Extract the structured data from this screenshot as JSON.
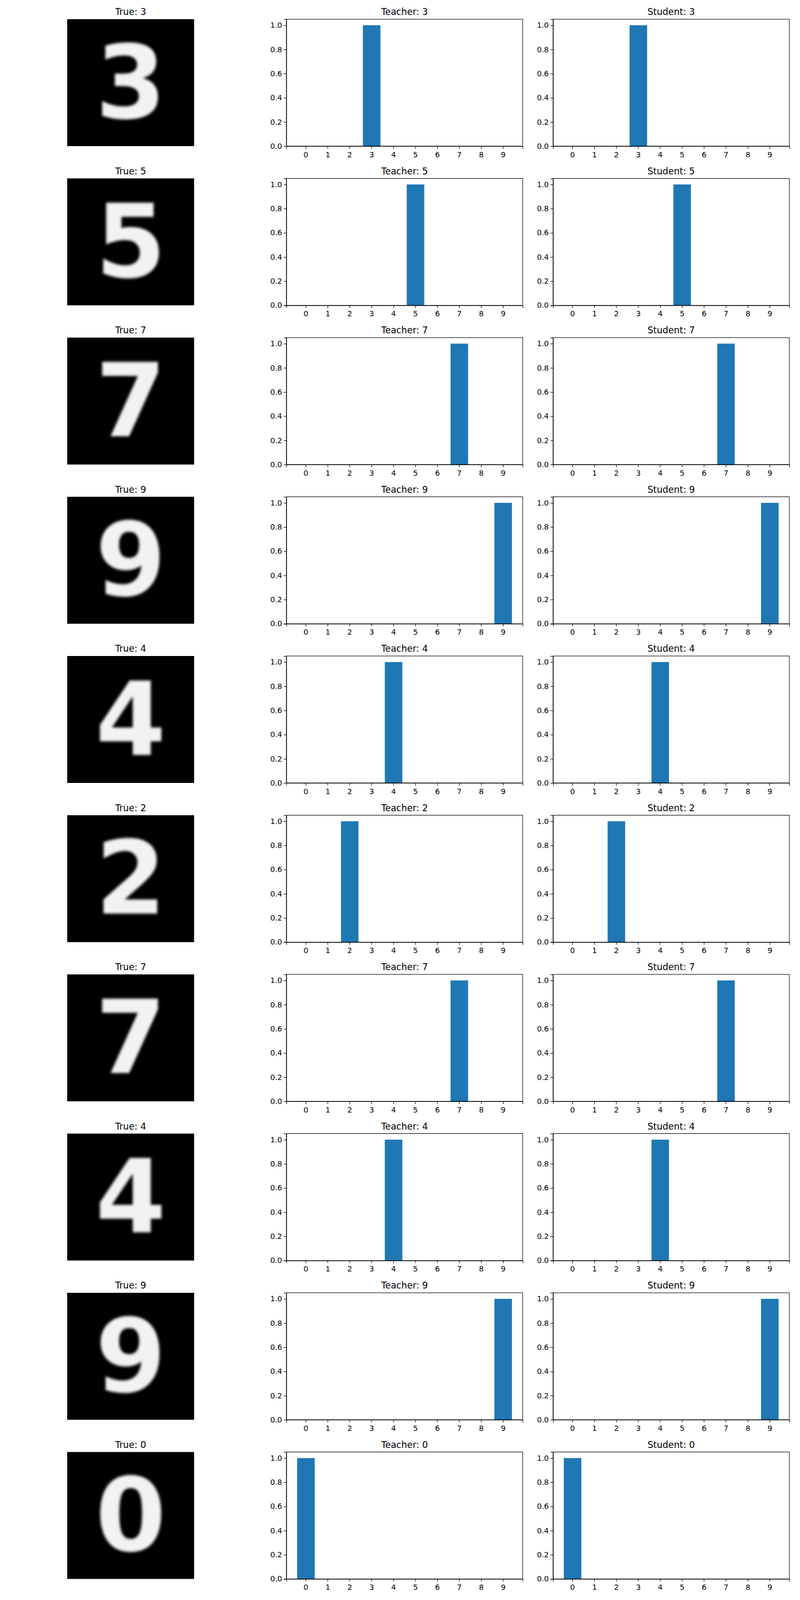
{
  "chart_data": [
    {
      "type": "image",
      "title": "True: 3",
      "label": 3
    },
    {
      "type": "bar",
      "title": "Teacher: 3",
      "categories": [
        "0",
        "1",
        "2",
        "3",
        "4",
        "5",
        "6",
        "7",
        "8",
        "9"
      ],
      "values": [
        0,
        0,
        0,
        1.0,
        0,
        0,
        0,
        0,
        0,
        0
      ],
      "color": "#1f77b4",
      "ylim": [
        0,
        1.05
      ],
      "yticks": [
        {
          "value": 0,
          "label": "0.0"
        },
        {
          "value": 0.2,
          "label": "0.2"
        },
        {
          "value": 0.4,
          "label": "0.4"
        },
        {
          "value": 0.6,
          "label": "0.6"
        },
        {
          "value": 0.8,
          "label": "0.8"
        },
        {
          "value": 1,
          "label": "1.0"
        }
      ]
    },
    {
      "type": "bar",
      "title": "Student: 3",
      "categories": [
        "0",
        "1",
        "2",
        "3",
        "4",
        "5",
        "6",
        "7",
        "8",
        "9"
      ],
      "values": [
        0,
        0,
        0,
        1.0,
        0,
        0,
        0,
        0,
        0,
        0
      ],
      "color": "#1f77b4",
      "ylim": [
        0,
        1.05
      ],
      "yticks": [
        {
          "value": 0,
          "label": "0.0"
        },
        {
          "value": 0.2,
          "label": "0.2"
        },
        {
          "value": 0.4,
          "label": "0.4"
        },
        {
          "value": 0.6,
          "label": "0.6"
        },
        {
          "value": 0.8,
          "label": "0.8"
        },
        {
          "value": 1,
          "label": "1.0"
        }
      ]
    },
    {
      "type": "image",
      "title": "True: 5",
      "label": 5
    },
    {
      "type": "bar",
      "title": "Teacher: 5",
      "categories": [
        "0",
        "1",
        "2",
        "3",
        "4",
        "5",
        "6",
        "7",
        "8",
        "9"
      ],
      "values": [
        0,
        0,
        0,
        0,
        0,
        1.0,
        0,
        0,
        0,
        0
      ],
      "color": "#1f77b4",
      "ylim": [
        0,
        1.05
      ],
      "yticks": [
        {
          "value": 0,
          "label": "0.0"
        },
        {
          "value": 0.2,
          "label": "0.2"
        },
        {
          "value": 0.4,
          "label": "0.4"
        },
        {
          "value": 0.6,
          "label": "0.6"
        },
        {
          "value": 0.8,
          "label": "0.8"
        },
        {
          "value": 1,
          "label": "1.0"
        }
      ]
    },
    {
      "type": "bar",
      "title": "Student: 5",
      "categories": [
        "0",
        "1",
        "2",
        "3",
        "4",
        "5",
        "6",
        "7",
        "8",
        "9"
      ],
      "values": [
        0,
        0,
        0,
        0,
        0,
        1.0,
        0,
        0,
        0,
        0
      ],
      "color": "#1f77b4",
      "ylim": [
        0,
        1.05
      ],
      "yticks": [
        {
          "value": 0,
          "label": "0.0"
        },
        {
          "value": 0.2,
          "label": "0.2"
        },
        {
          "value": 0.4,
          "label": "0.4"
        },
        {
          "value": 0.6,
          "label": "0.6"
        },
        {
          "value": 0.8,
          "label": "0.8"
        },
        {
          "value": 1,
          "label": "1.0"
        }
      ]
    },
    {
      "type": "image",
      "title": "True: 7",
      "label": 7
    },
    {
      "type": "bar",
      "title": "Teacher: 7",
      "categories": [
        "0",
        "1",
        "2",
        "3",
        "4",
        "5",
        "6",
        "7",
        "8",
        "9"
      ],
      "values": [
        0,
        0,
        0,
        0,
        0,
        0,
        0,
        1.0,
        0,
        0
      ],
      "color": "#1f77b4",
      "ylim": [
        0,
        1.05
      ],
      "yticks": [
        {
          "value": 0,
          "label": "0.0"
        },
        {
          "value": 0.2,
          "label": "0.2"
        },
        {
          "value": 0.4,
          "label": "0.4"
        },
        {
          "value": 0.6,
          "label": "0.6"
        },
        {
          "value": 0.8,
          "label": "0.8"
        },
        {
          "value": 1,
          "label": "1.0"
        }
      ]
    },
    {
      "type": "bar",
      "title": "Student: 7",
      "categories": [
        "0",
        "1",
        "2",
        "3",
        "4",
        "5",
        "6",
        "7",
        "8",
        "9"
      ],
      "values": [
        0,
        0,
        0,
        0,
        0,
        0,
        0,
        1.0,
        0,
        0
      ],
      "color": "#1f77b4",
      "ylim": [
        0,
        1.05
      ],
      "yticks": [
        {
          "value": 0,
          "label": "0.0"
        },
        {
          "value": 0.2,
          "label": "0.2"
        },
        {
          "value": 0.4,
          "label": "0.4"
        },
        {
          "value": 0.6,
          "label": "0.6"
        },
        {
          "value": 0.8,
          "label": "0.8"
        },
        {
          "value": 1,
          "label": "1.0"
        }
      ]
    },
    {
      "type": "image",
      "title": "True: 9",
      "label": 9
    },
    {
      "type": "bar",
      "title": "Teacher: 9",
      "categories": [
        "0",
        "1",
        "2",
        "3",
        "4",
        "5",
        "6",
        "7",
        "8",
        "9"
      ],
      "values": [
        0,
        0,
        0,
        0,
        0,
        0,
        0,
        0,
        0,
        1.0
      ],
      "color": "#1f77b4",
      "ylim": [
        0,
        1.05
      ],
      "yticks": [
        {
          "value": 0,
          "label": "0.0"
        },
        {
          "value": 0.2,
          "label": "0.2"
        },
        {
          "value": 0.4,
          "label": "0.4"
        },
        {
          "value": 0.6,
          "label": "0.6"
        },
        {
          "value": 0.8,
          "label": "0.8"
        },
        {
          "value": 1,
          "label": "1.0"
        }
      ]
    },
    {
      "type": "bar",
      "title": "Student: 9",
      "categories": [
        "0",
        "1",
        "2",
        "3",
        "4",
        "5",
        "6",
        "7",
        "8",
        "9"
      ],
      "values": [
        0,
        0,
        0,
        0,
        0,
        0,
        0,
        0,
        0,
        1.0
      ],
      "color": "#1f77b4",
      "ylim": [
        0,
        1.05
      ],
      "yticks": [
        {
          "value": 0,
          "label": "0.0"
        },
        {
          "value": 0.2,
          "label": "0.2"
        },
        {
          "value": 0.4,
          "label": "0.4"
        },
        {
          "value": 0.6,
          "label": "0.6"
        },
        {
          "value": 0.8,
          "label": "0.8"
        },
        {
          "value": 1,
          "label": "1.0"
        }
      ]
    },
    {
      "type": "image",
      "title": "True: 4",
      "label": 4
    },
    {
      "type": "bar",
      "title": "Teacher: 4",
      "categories": [
        "0",
        "1",
        "2",
        "3",
        "4",
        "5",
        "6",
        "7",
        "8",
        "9"
      ],
      "values": [
        0,
        0,
        0,
        0,
        1.0,
        0,
        0,
        0,
        0,
        0
      ],
      "color": "#1f77b4",
      "ylim": [
        0,
        1.05
      ],
      "yticks": [
        {
          "value": 0,
          "label": "0.0"
        },
        {
          "value": 0.2,
          "label": "0.2"
        },
        {
          "value": 0.4,
          "label": "0.4"
        },
        {
          "value": 0.6,
          "label": "0.6"
        },
        {
          "value": 0.8,
          "label": "0.8"
        },
        {
          "value": 1,
          "label": "1.0"
        }
      ]
    },
    {
      "type": "bar",
      "title": "Student: 4",
      "categories": [
        "0",
        "1",
        "2",
        "3",
        "4",
        "5",
        "6",
        "7",
        "8",
        "9"
      ],
      "values": [
        0,
        0,
        0,
        0,
        1.0,
        0,
        0,
        0,
        0,
        0
      ],
      "color": "#1f77b4",
      "ylim": [
        0,
        1.05
      ],
      "yticks": [
        {
          "value": 0,
          "label": "0.0"
        },
        {
          "value": 0.2,
          "label": "0.2"
        },
        {
          "value": 0.4,
          "label": "0.4"
        },
        {
          "value": 0.6,
          "label": "0.6"
        },
        {
          "value": 0.8,
          "label": "0.8"
        },
        {
          "value": 1,
          "label": "1.0"
        }
      ]
    },
    {
      "type": "image",
      "title": "True: 2",
      "label": 2
    },
    {
      "type": "bar",
      "title": "Teacher: 2",
      "categories": [
        "0",
        "1",
        "2",
        "3",
        "4",
        "5",
        "6",
        "7",
        "8",
        "9"
      ],
      "values": [
        0,
        0,
        1.0,
        0,
        0,
        0,
        0,
        0,
        0,
        0
      ],
      "color": "#1f77b4",
      "ylim": [
        0,
        1.05
      ],
      "yticks": [
        {
          "value": 0,
          "label": "0.0"
        },
        {
          "value": 0.2,
          "label": "0.2"
        },
        {
          "value": 0.4,
          "label": "0.4"
        },
        {
          "value": 0.6,
          "label": "0.6"
        },
        {
          "value": 0.8,
          "label": "0.8"
        },
        {
          "value": 1,
          "label": "1.0"
        }
      ]
    },
    {
      "type": "bar",
      "title": "Student: 2",
      "categories": [
        "0",
        "1",
        "2",
        "3",
        "4",
        "5",
        "6",
        "7",
        "8",
        "9"
      ],
      "values": [
        0,
        0,
        1.0,
        0,
        0,
        0,
        0,
        0,
        0,
        0
      ],
      "color": "#1f77b4",
      "ylim": [
        0,
        1.05
      ],
      "yticks": [
        {
          "value": 0,
          "label": "0.0"
        },
        {
          "value": 0.2,
          "label": "0.2"
        },
        {
          "value": 0.4,
          "label": "0.4"
        },
        {
          "value": 0.6,
          "label": "0.6"
        },
        {
          "value": 0.8,
          "label": "0.8"
        },
        {
          "value": 1,
          "label": "1.0"
        }
      ]
    },
    {
      "type": "image",
      "title": "True: 7",
      "label": 7
    },
    {
      "type": "bar",
      "title": "Teacher: 7",
      "categories": [
        "0",
        "1",
        "2",
        "3",
        "4",
        "5",
        "6",
        "7",
        "8",
        "9"
      ],
      "values": [
        0,
        0,
        0,
        0,
        0,
        0,
        0,
        1.0,
        0,
        0
      ],
      "color": "#1f77b4",
      "ylim": [
        0,
        1.05
      ],
      "yticks": [
        {
          "value": 0,
          "label": "0.0"
        },
        {
          "value": 0.2,
          "label": "0.2"
        },
        {
          "value": 0.4,
          "label": "0.4"
        },
        {
          "value": 0.6,
          "label": "0.6"
        },
        {
          "value": 0.8,
          "label": "0.8"
        },
        {
          "value": 1,
          "label": "1.0"
        }
      ]
    },
    {
      "type": "bar",
      "title": "Student: 7",
      "categories": [
        "0",
        "1",
        "2",
        "3",
        "4",
        "5",
        "6",
        "7",
        "8",
        "9"
      ],
      "values": [
        0,
        0,
        0,
        0,
        0,
        0,
        0,
        1.0,
        0,
        0
      ],
      "color": "#1f77b4",
      "ylim": [
        0,
        1.05
      ],
      "yticks": [
        {
          "value": 0,
          "label": "0.0"
        },
        {
          "value": 0.2,
          "label": "0.2"
        },
        {
          "value": 0.4,
          "label": "0.4"
        },
        {
          "value": 0.6,
          "label": "0.6"
        },
        {
          "value": 0.8,
          "label": "0.8"
        },
        {
          "value": 1,
          "label": "1.0"
        }
      ]
    },
    {
      "type": "image",
      "title": "True: 4",
      "label": 4
    },
    {
      "type": "bar",
      "title": "Teacher: 4",
      "categories": [
        "0",
        "1",
        "2",
        "3",
        "4",
        "5",
        "6",
        "7",
        "8",
        "9"
      ],
      "values": [
        0,
        0,
        0,
        0,
        1.0,
        0,
        0,
        0,
        0,
        0
      ],
      "color": "#1f77b4",
      "ylim": [
        0,
        1.05
      ],
      "yticks": [
        {
          "value": 0,
          "label": "0.0"
        },
        {
          "value": 0.2,
          "label": "0.2"
        },
        {
          "value": 0.4,
          "label": "0.4"
        },
        {
          "value": 0.6,
          "label": "0.6"
        },
        {
          "value": 0.8,
          "label": "0.8"
        },
        {
          "value": 1,
          "label": "1.0"
        }
      ]
    },
    {
      "type": "bar",
      "title": "Student: 4",
      "categories": [
        "0",
        "1",
        "2",
        "3",
        "4",
        "5",
        "6",
        "7",
        "8",
        "9"
      ],
      "values": [
        0,
        0,
        0,
        0,
        1.0,
        0,
        0,
        0,
        0,
        0
      ],
      "color": "#1f77b4",
      "ylim": [
        0,
        1.05
      ],
      "yticks": [
        {
          "value": 0,
          "label": "0.0"
        },
        {
          "value": 0.2,
          "label": "0.2"
        },
        {
          "value": 0.4,
          "label": "0.4"
        },
        {
          "value": 0.6,
          "label": "0.6"
        },
        {
          "value": 0.8,
          "label": "0.8"
        },
        {
          "value": 1,
          "label": "1.0"
        }
      ]
    },
    {
      "type": "image",
      "title": "True: 9",
      "label": 9
    },
    {
      "type": "bar",
      "title": "Teacher: 9",
      "categories": [
        "0",
        "1",
        "2",
        "3",
        "4",
        "5",
        "6",
        "7",
        "8",
        "9"
      ],
      "values": [
        0,
        0,
        0,
        0,
        0,
        0,
        0,
        0,
        0,
        1.0
      ],
      "color": "#1f77b4",
      "ylim": [
        0,
        1.05
      ],
      "yticks": [
        {
          "value": 0,
          "label": "0.0"
        },
        {
          "value": 0.2,
          "label": "0.2"
        },
        {
          "value": 0.4,
          "label": "0.4"
        },
        {
          "value": 0.6,
          "label": "0.6"
        },
        {
          "value": 0.8,
          "label": "0.8"
        },
        {
          "value": 1,
          "label": "1.0"
        }
      ]
    },
    {
      "type": "bar",
      "title": "Student: 9",
      "categories": [
        "0",
        "1",
        "2",
        "3",
        "4",
        "5",
        "6",
        "7",
        "8",
        "9"
      ],
      "values": [
        0,
        0,
        0,
        0,
        0,
        0,
        0,
        0,
        0,
        1.0
      ],
      "color": "#1f77b4",
      "ylim": [
        0,
        1.05
      ],
      "yticks": [
        {
          "value": 0,
          "label": "0.0"
        },
        {
          "value": 0.2,
          "label": "0.2"
        },
        {
          "value": 0.4,
          "label": "0.4"
        },
        {
          "value": 0.6,
          "label": "0.6"
        },
        {
          "value": 0.8,
          "label": "0.8"
        },
        {
          "value": 1,
          "label": "1.0"
        }
      ]
    },
    {
      "type": "image",
      "title": "True: 0",
      "label": 0
    },
    {
      "type": "bar",
      "title": "Teacher: 0",
      "categories": [
        "0",
        "1",
        "2",
        "3",
        "4",
        "5",
        "6",
        "7",
        "8",
        "9"
      ],
      "values": [
        1.0,
        0,
        0,
        0,
        0,
        0,
        0,
        0,
        0,
        0
      ],
      "color": "#1f77b4",
      "ylim": [
        0,
        1.05
      ],
      "yticks": [
        {
          "value": 0,
          "label": "0.0"
        },
        {
          "value": 0.2,
          "label": "0.2"
        },
        {
          "value": 0.4,
          "label": "0.4"
        },
        {
          "value": 0.6,
          "label": "0.6"
        },
        {
          "value": 0.8,
          "label": "0.8"
        },
        {
          "value": 1,
          "label": "1.0"
        }
      ]
    },
    {
      "type": "bar",
      "title": "Student: 0",
      "categories": [
        "0",
        "1",
        "2",
        "3",
        "4",
        "5",
        "6",
        "7",
        "8",
        "9"
      ],
      "values": [
        1.0,
        0,
        0,
        0,
        0,
        0,
        0,
        0,
        0,
        0
      ],
      "color": "#1f77b4",
      "ylim": [
        0,
        1.05
      ],
      "yticks": [
        {
          "value": 0,
          "label": "0.0"
        },
        {
          "value": 0.2,
          "label": "0.2"
        },
        {
          "value": 0.4,
          "label": "0.4"
        },
        {
          "value": 0.6,
          "label": "0.6"
        },
        {
          "value": 0.8,
          "label": "0.8"
        },
        {
          "value": 1,
          "label": "1.0"
        }
      ]
    }
  ]
}
